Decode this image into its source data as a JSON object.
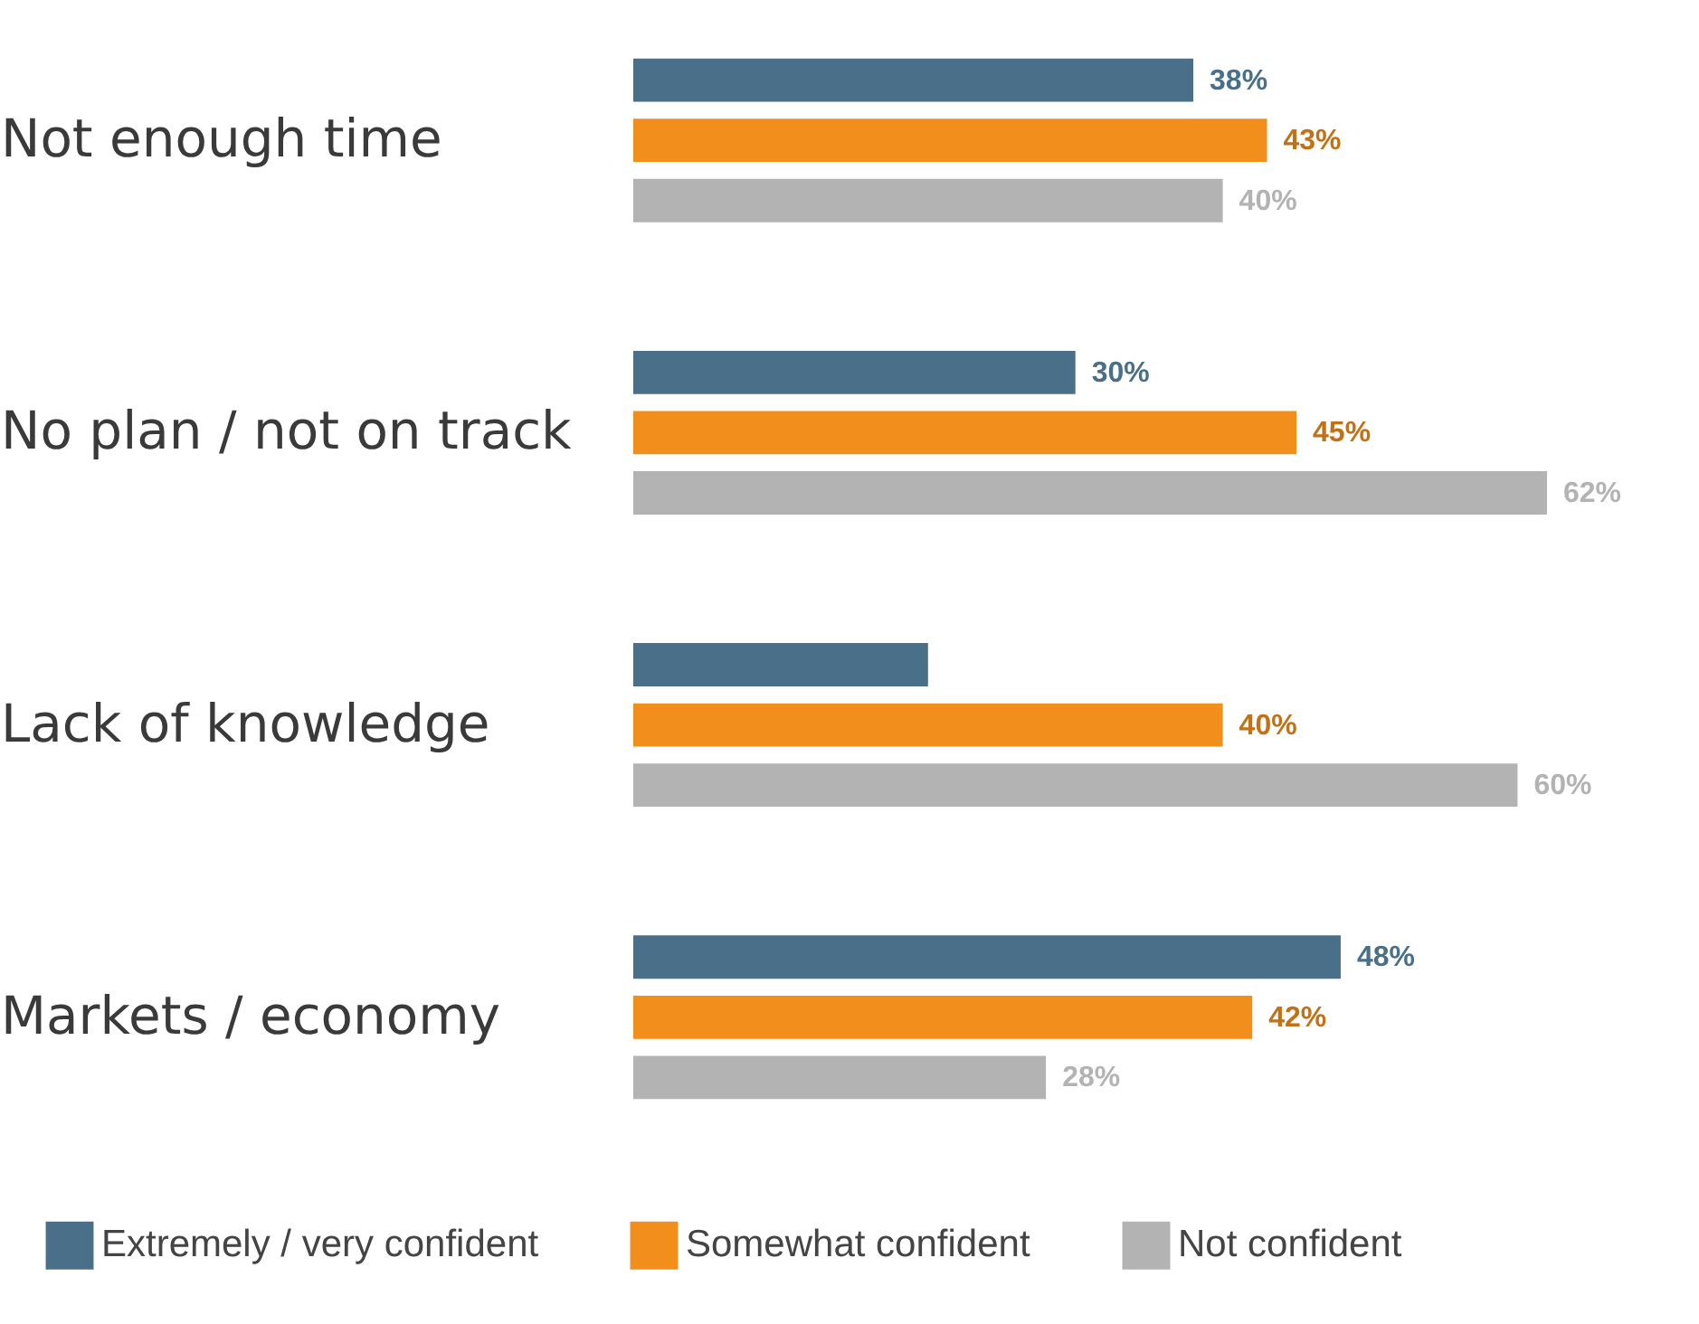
{
  "chart_data": {
    "type": "bar",
    "orientation": "horizontal",
    "categories": [
      "Not enough time",
      "No plan / not on track",
      "Lack of knowledge",
      "Markets / economy"
    ],
    "series": [
      {
        "name": "Extremely / very confident",
        "color": "#4a7089",
        "values": [
          38,
          30,
          20,
          48
        ],
        "value_labels": [
          "38%",
          "30%",
          null,
          "48%"
        ]
      },
      {
        "name": "Somewhat confident",
        "color": "#f28e1c",
        "values": [
          43,
          45,
          40,
          42
        ],
        "value_labels": [
          "43%",
          "45%",
          "40%",
          "42%"
        ]
      },
      {
        "name": "Not confident",
        "color": "#b3b3b3",
        "values": [
          40,
          62,
          60,
          28
        ],
        "value_labels": [
          "40%",
          "62%",
          "60%",
          "28%"
        ]
      }
    ],
    "legend": "bottom"
  }
}
